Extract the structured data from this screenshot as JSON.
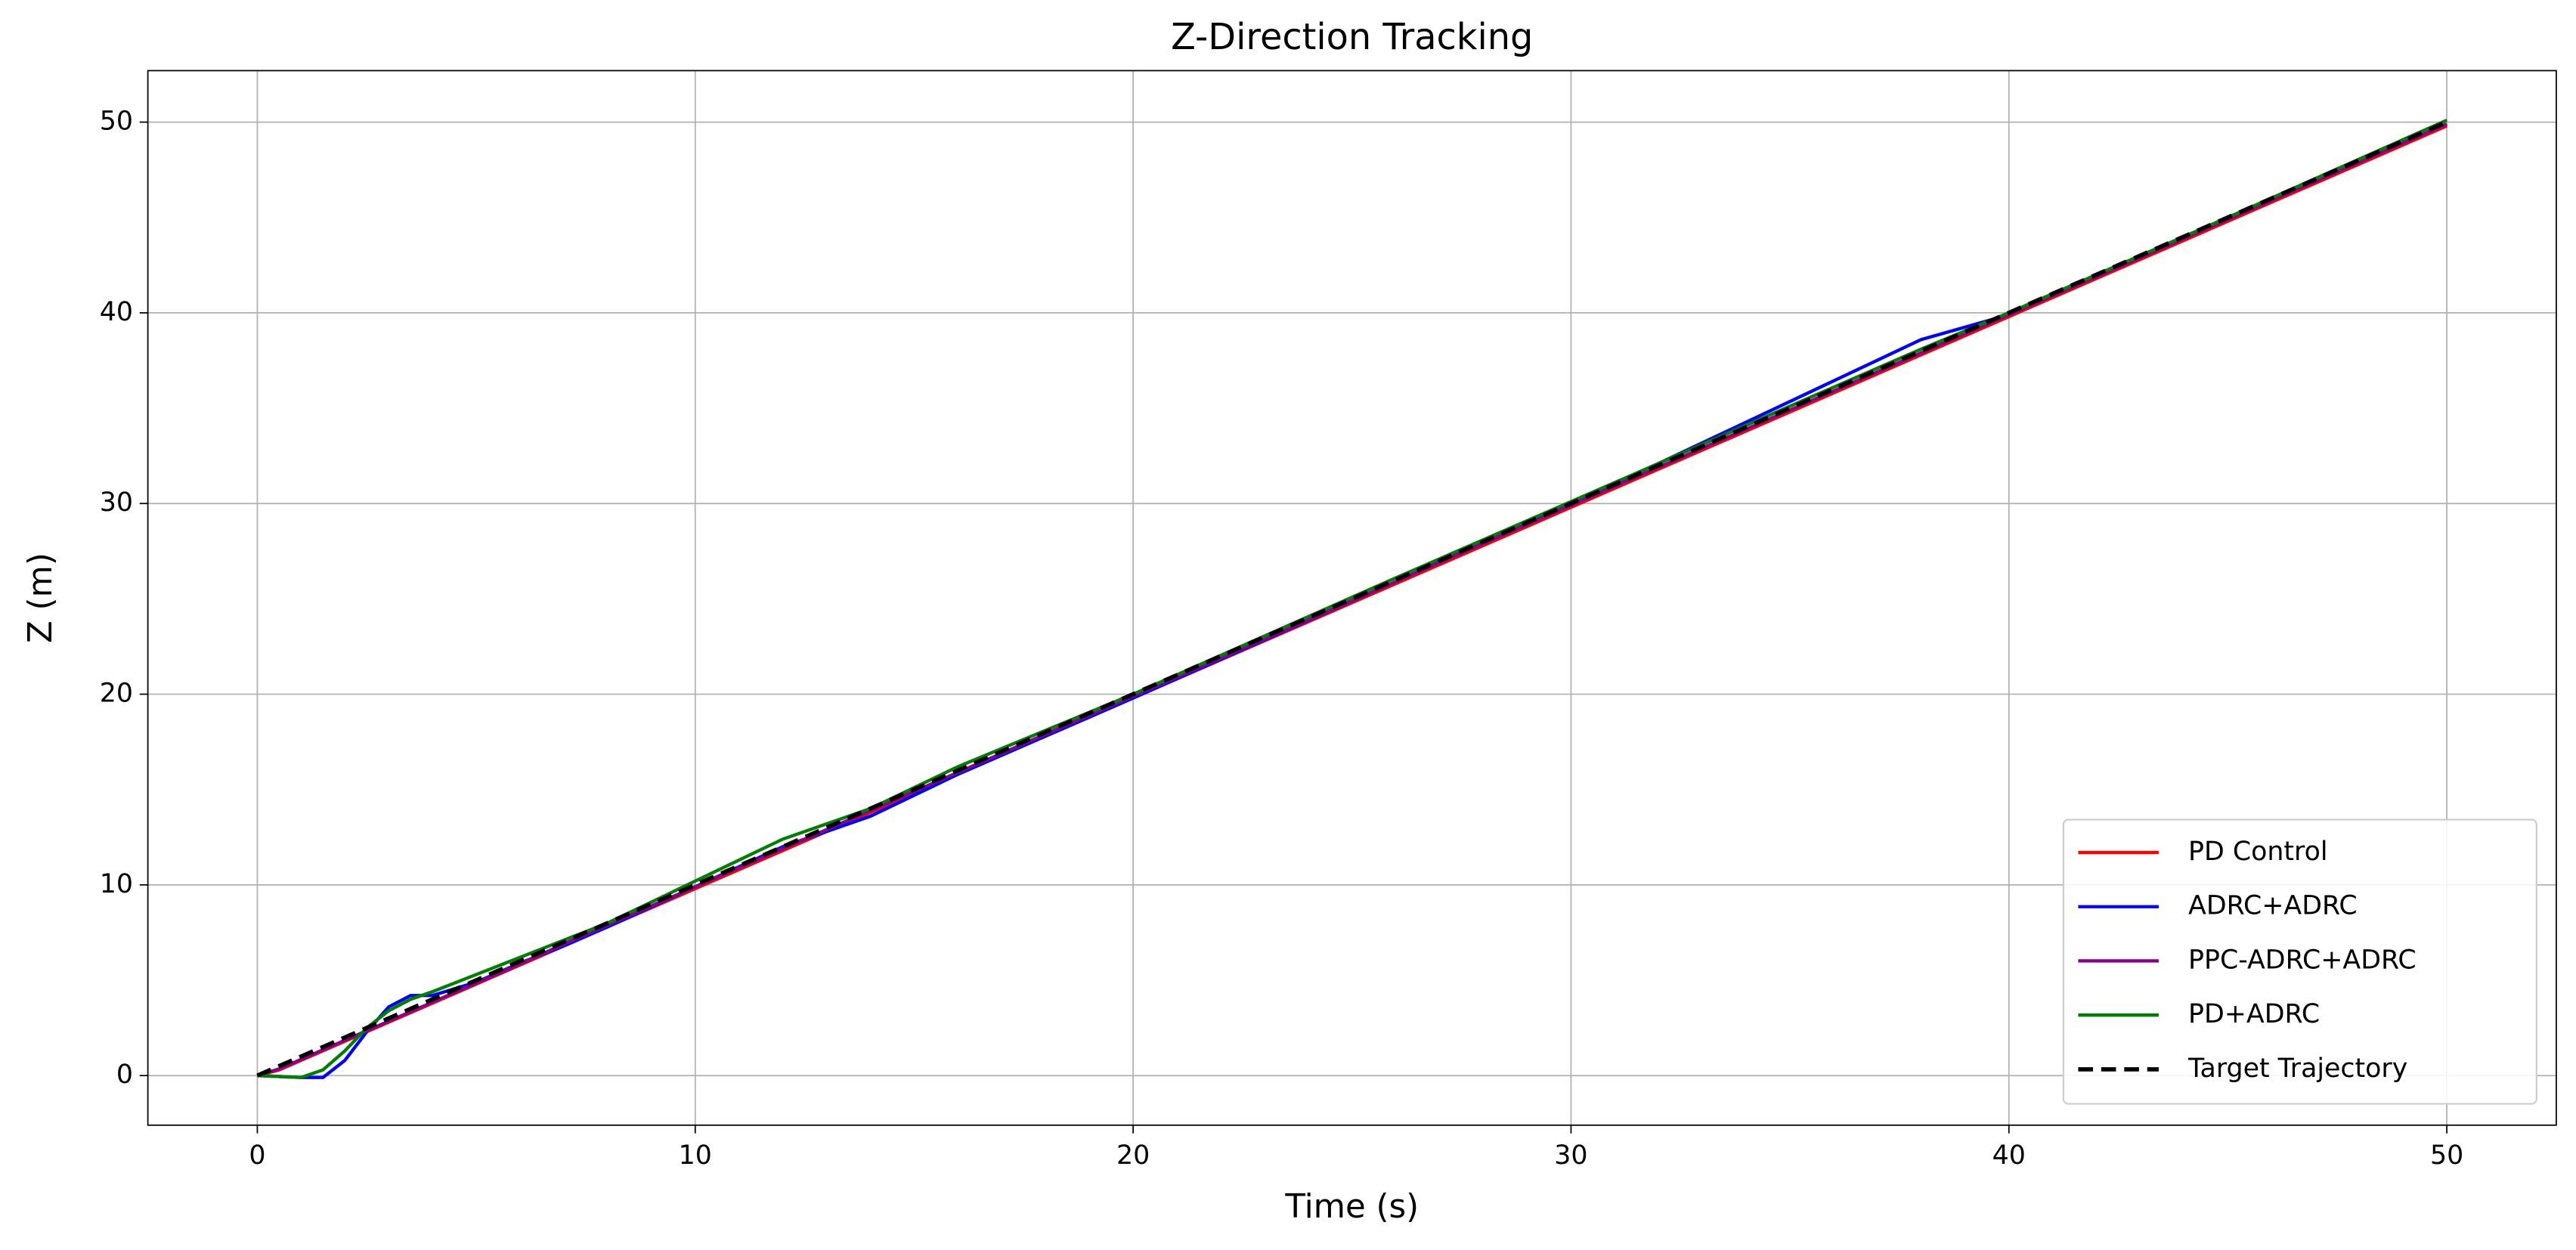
{
  "chart_data": {
    "type": "line",
    "title": "Z-Direction Tracking",
    "x_label": "Time (s)",
    "y_label": "Z (m)",
    "x": [
      0,
      0.5,
      1,
      1.5,
      2,
      2.5,
      3,
      3.5,
      4,
      5,
      6,
      7,
      8,
      10,
      12,
      14,
      16,
      20,
      26,
      32,
      38,
      40,
      45,
      50
    ],
    "series": [
      {
        "name": "PD Control",
        "color": "#ff0000",
        "linestyle": "solid",
        "values": [
          0,
          0.3,
          0.8,
          1.3,
          1.8,
          2.3,
          2.8,
          3.3,
          3.8,
          4.8,
          5.8,
          6.8,
          7.8,
          9.8,
          11.8,
          13.8,
          15.8,
          19.8,
          25.8,
          31.8,
          37.8,
          39.8,
          44.8,
          49.8
        ]
      },
      {
        "name": "ADRC+ADRC",
        "color": "#0000ff",
        "linestyle": "solid",
        "values": [
          0,
          -0.05,
          -0.1,
          -0.1,
          0.8,
          2.3,
          3.6,
          4.2,
          4.2,
          4.9,
          5.9,
          6.8,
          7.8,
          9.9,
          12.0,
          13.6,
          15.8,
          19.8,
          25.9,
          32.1,
          38.6,
          39.9,
          44.9,
          49.9
        ]
      },
      {
        "name": "PPC-ADRC+ADRC",
        "color": "#8b008b",
        "linestyle": "solid",
        "values": [
          0,
          0.35,
          0.85,
          1.35,
          1.85,
          2.35,
          2.85,
          3.35,
          3.85,
          4.85,
          5.85,
          6.9,
          7.9,
          9.9,
          11.9,
          13.9,
          15.9,
          19.9,
          25.9,
          31.9,
          37.9,
          39.9,
          44.9,
          49.9
        ]
      },
      {
        "name": "PD+ADRC",
        "color": "#008000",
        "linestyle": "solid",
        "values": [
          0,
          -0.05,
          -0.1,
          0.3,
          1.3,
          2.5,
          3.4,
          4.0,
          4.4,
          5.3,
          6.2,
          7.1,
          8.0,
          10.2,
          12.4,
          14.0,
          16.2,
          20.0,
          26.1,
          32.1,
          38.1,
          40.0,
          45.0,
          50.1
        ]
      },
      {
        "name": "Target Trajectory",
        "color": "#000000",
        "linestyle": "dashed",
        "values": [
          0,
          0.5,
          1,
          1.5,
          2,
          2.5,
          3,
          3.5,
          4,
          5,
          6,
          7,
          8,
          10,
          12,
          14,
          16,
          20,
          26,
          32,
          38,
          40,
          45,
          50
        ]
      }
    ],
    "xlim": [
      -2.5,
      52.5
    ],
    "ylim": [
      -2.6,
      52.7
    ],
    "xticks": [
      0,
      10,
      20,
      30,
      40,
      50
    ],
    "yticks": [
      0,
      10,
      20,
      30,
      40,
      50
    ],
    "grid": true,
    "legend_loc": "lower right"
  }
}
